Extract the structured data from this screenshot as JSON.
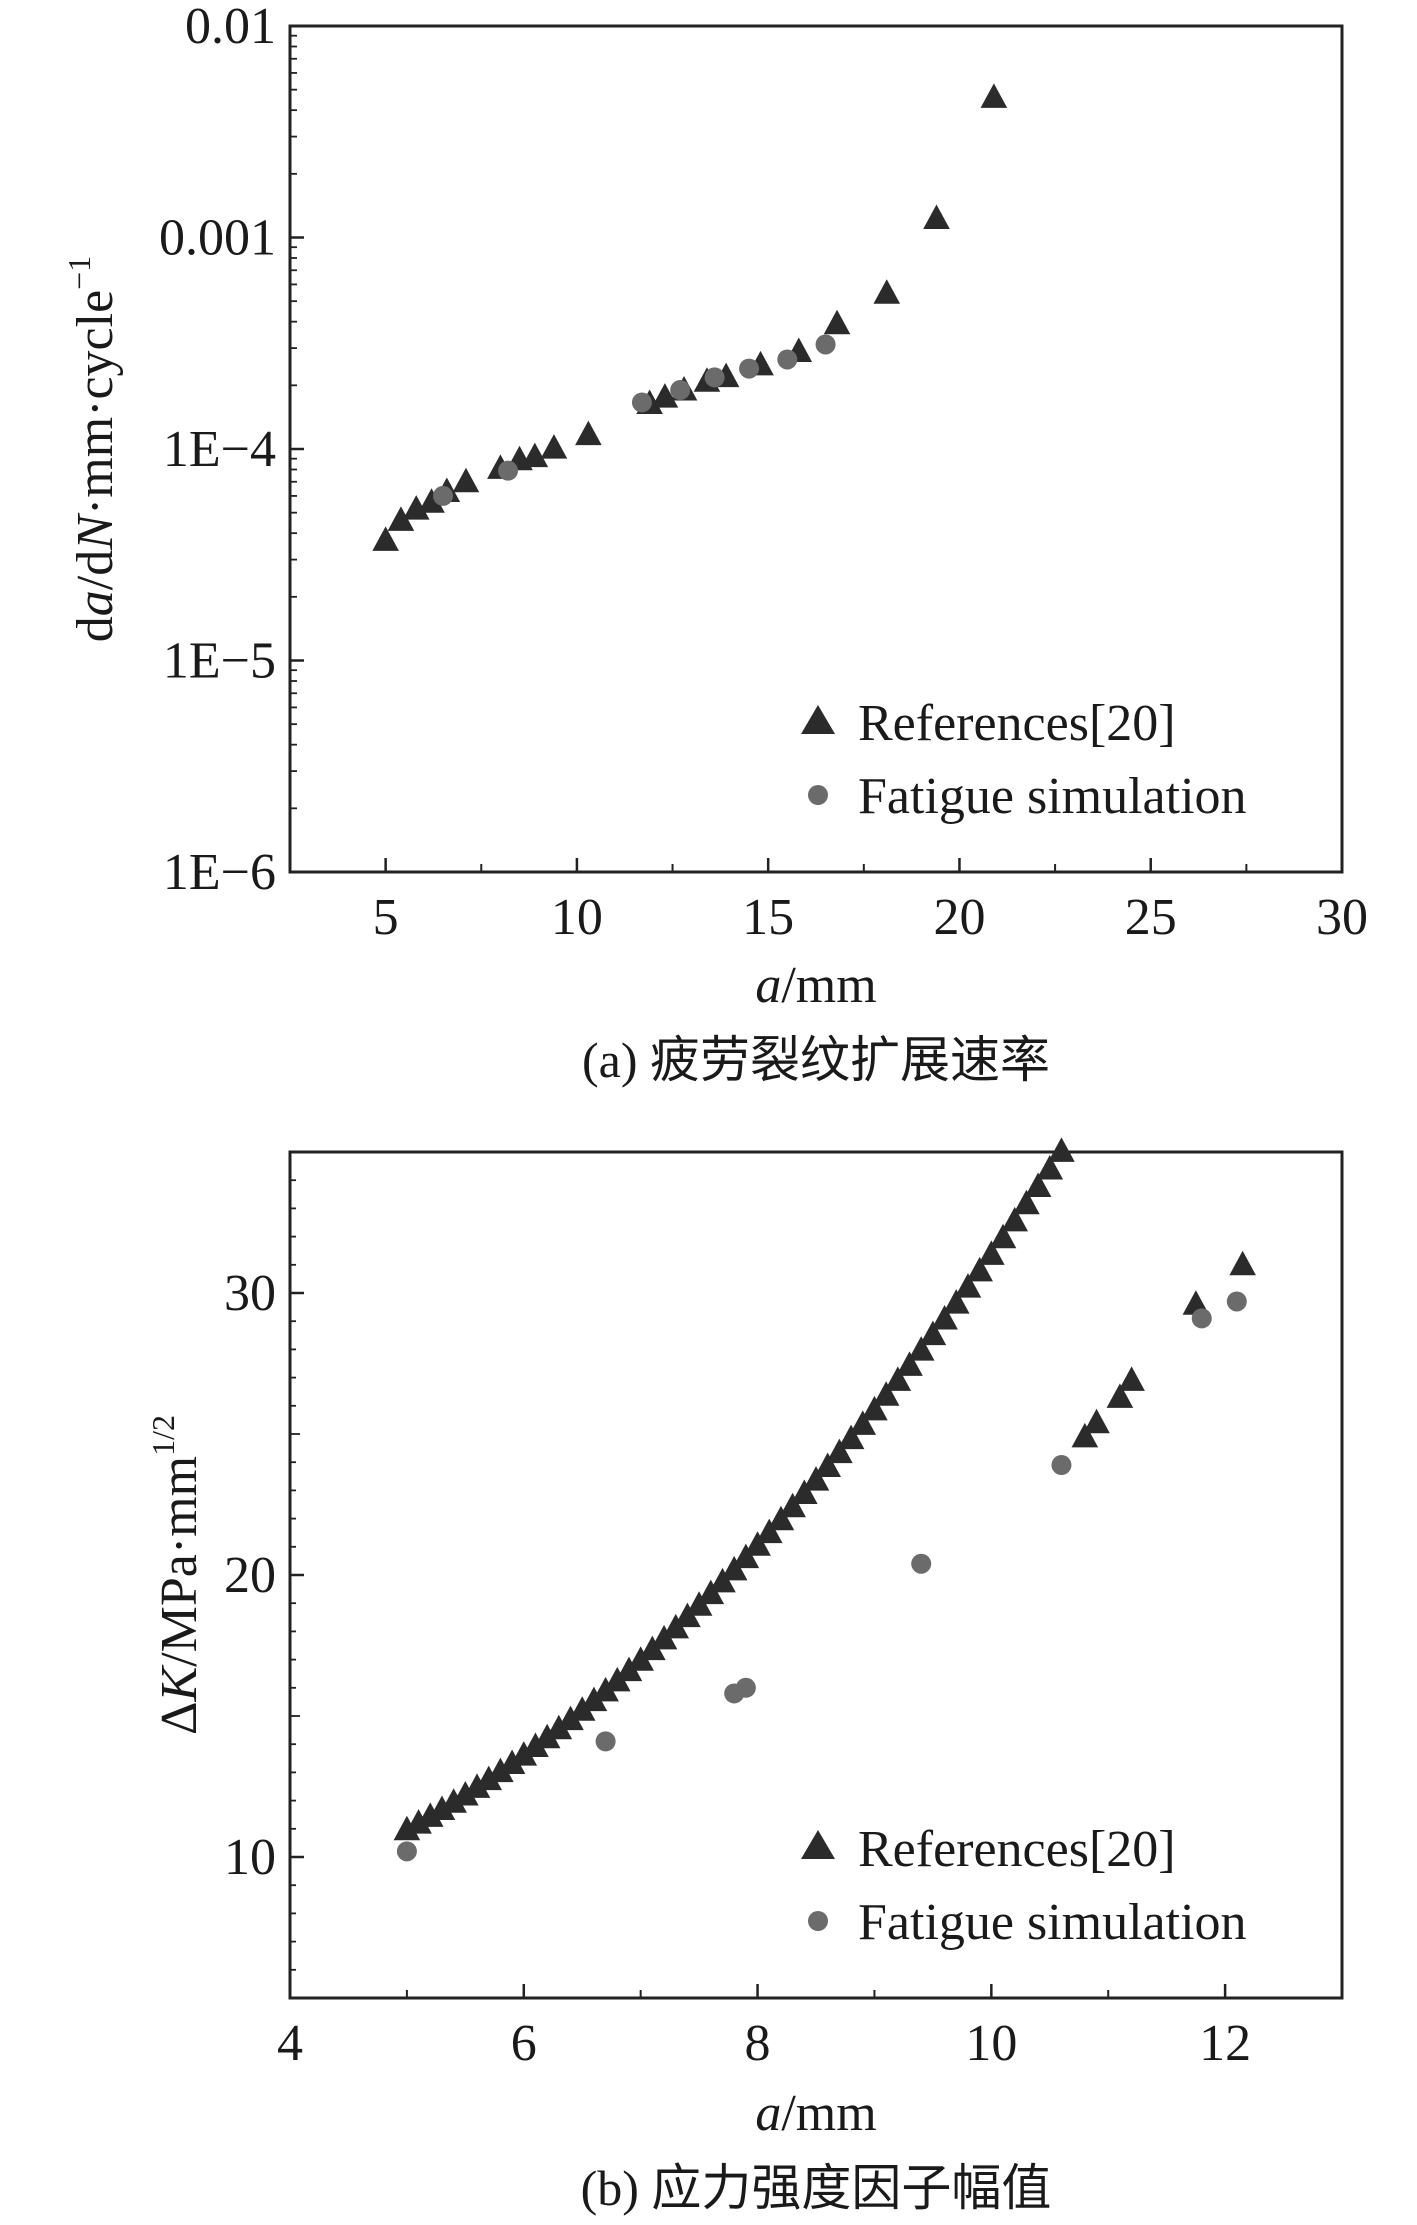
{
  "chart_data": [
    {
      "id": "a",
      "type": "scatter",
      "caption": "(a) 疲劳裂纹扩展速率",
      "xlabel_var": "a",
      "xlabel_unit": "/mm",
      "ylabel_parts": [
        "d",
        "a",
        "/d",
        "N",
        "·mm·cycle",
        "−1"
      ],
      "yscale": "log",
      "xlim": [
        2.5,
        30
      ],
      "ylim": [
        1e-06,
        0.01
      ],
      "xticks": [
        5,
        10,
        15,
        20,
        25,
        30
      ],
      "xtick_labels": [
        "5",
        "10",
        "15",
        "20",
        "25",
        "30"
      ],
      "yticks": [
        1e-06,
        1e-05,
        0.0001,
        0.001,
        0.01
      ],
      "ytick_labels": [
        "1E−6",
        "1E−5",
        "1E−4",
        "0.001",
        "0.01"
      ],
      "grid": false,
      "legend_position": "bottom-right",
      "series": [
        {
          "name": "References[20]",
          "marker": "triangle",
          "color": "#2b2b2b",
          "points": [
            [
              5.0,
              3.7e-05
            ],
            [
              5.4,
              4.6e-05
            ],
            [
              5.8,
              5.2e-05
            ],
            [
              6.2,
              5.6e-05
            ],
            [
              6.6,
              6.3e-05
            ],
            [
              7.1,
              7e-05
            ],
            [
              8.0,
              8.1e-05
            ],
            [
              8.5,
              8.9e-05
            ],
            [
              8.9,
              9.2e-05
            ],
            [
              9.4,
              0.000101
            ],
            [
              10.3,
              0.000117
            ],
            [
              11.9,
              0.000164
            ],
            [
              12.3,
              0.000176
            ],
            [
              12.8,
              0.00019
            ],
            [
              13.4,
              0.000209
            ],
            [
              13.9,
              0.00022
            ],
            [
              14.8,
              0.00025
            ],
            [
              15.8,
              0.000289
            ],
            [
              16.8,
              0.000391
            ],
            [
              18.1,
              0.000545
            ],
            [
              19.4,
              0.00123
            ],
            [
              20.9,
              0.0046
            ]
          ]
        },
        {
          "name": "Fatigue simulation",
          "marker": "circle",
          "color": "#6b6b6b",
          "points": [
            [
              6.5,
              6e-05
            ],
            [
              8.2,
              7.9e-05
            ],
            [
              11.7,
              0.000166
            ],
            [
              12.7,
              0.00019
            ],
            [
              13.6,
              0.000218
            ],
            [
              14.5,
              0.00024
            ],
            [
              15.5,
              0.000265
            ],
            [
              16.5,
              0.000312
            ]
          ]
        }
      ]
    },
    {
      "id": "b",
      "type": "scatter",
      "caption": "(b) 应力强度因子幅值",
      "xlabel_var": "a",
      "xlabel_unit": "/mm",
      "ylabel_parts": [
        "Δ",
        "K",
        "/MPa·mm",
        "1/2"
      ],
      "yscale": "linear",
      "xlim": [
        4,
        13
      ],
      "ylim": [
        5,
        35
      ],
      "xticks": [
        4,
        6,
        8,
        10,
        12
      ],
      "xtick_labels": [
        "4",
        "6",
        "8",
        "10",
        "12"
      ],
      "yticks": [
        10,
        20,
        30
      ],
      "ytick_labels": [
        "10",
        "20",
        "30"
      ],
      "grid": false,
      "legend_position": "bottom-right",
      "series": [
        {
          "name": "References[20]",
          "marker": "triangle",
          "color": "#2b2b2b",
          "function": "0.3587*a*a - 1.3*a + 8.5",
          "x_start": 5.0,
          "x_end": 10.6,
          "x_step": 0.1,
          "extra_points": [
            [
              10.8,
              24.9
            ],
            [
              10.9,
              25.4
            ],
            [
              11.1,
              26.3
            ],
            [
              11.2,
              26.9
            ],
            [
              11.75,
              29.6
            ],
            [
              12.15,
              31.0
            ]
          ]
        },
        {
          "name": "Fatigue simulation",
          "marker": "circle",
          "color": "#6b6b6b",
          "points": [
            [
              5.0,
              10.2
            ],
            [
              6.7,
              14.1
            ],
            [
              7.8,
              15.8
            ],
            [
              7.9,
              16.0
            ],
            [
              9.4,
              20.4
            ],
            [
              10.6,
              23.9
            ],
            [
              11.8,
              29.1
            ],
            [
              12.1,
              29.7
            ]
          ]
        }
      ]
    }
  ]
}
